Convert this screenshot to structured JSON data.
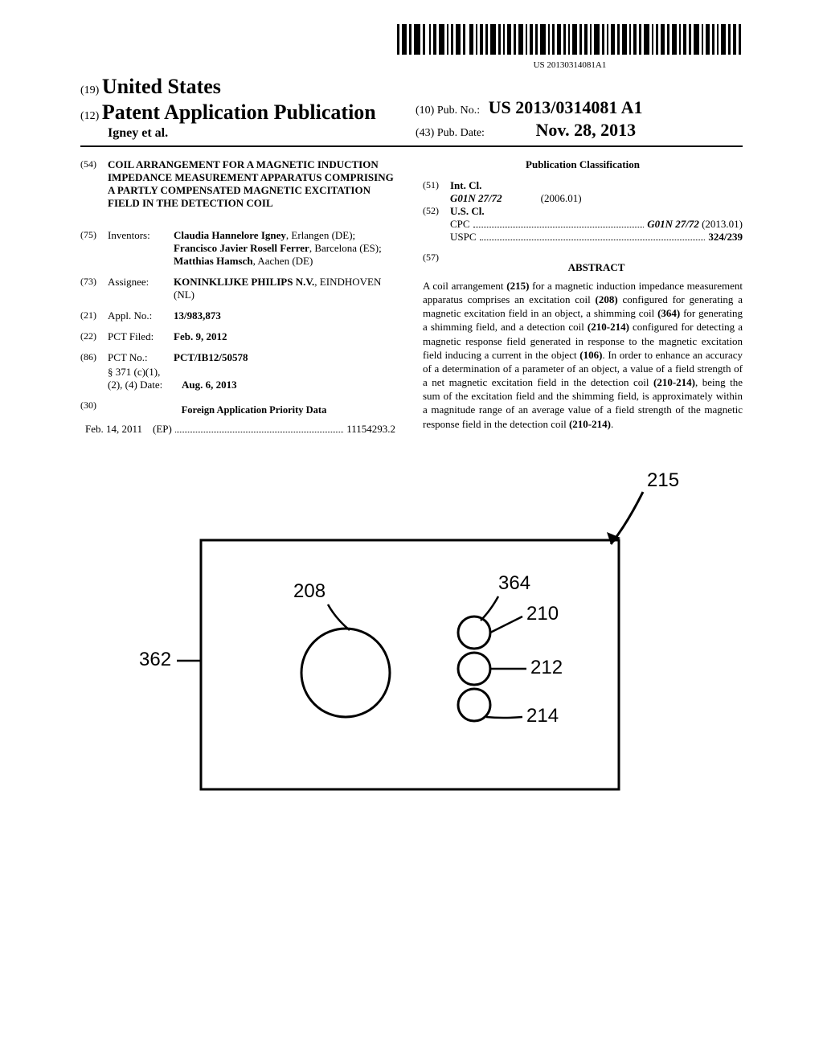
{
  "barcode": {
    "text": "US 20130314081A1"
  },
  "header": {
    "code19": "(19)",
    "country": "United States",
    "code12": "(12)",
    "pubtype": "Patent Application Publication",
    "authors": "Igney et al.",
    "code10": "(10)",
    "pubno_label": "Pub. No.:",
    "pubno": "US 2013/0314081 A1",
    "code43": "(43)",
    "pubdate_label": "Pub. Date:",
    "pubdate": "Nov. 28, 2013"
  },
  "left": {
    "code54": "(54)",
    "title": "COIL ARRANGEMENT FOR A MAGNETIC INDUCTION IMPEDANCE MEASUREMENT APPARATUS COMPRISING A PARTLY COMPENSATED MAGNETIC EXCITATION FIELD IN THE DETECTION COIL",
    "code75": "(75)",
    "inventors_label": "Inventors:",
    "inventors_html": "Claudia Hannelore Igney|, Erlangen (DE); |Francisco Javier Rosell Ferrer|, Barcelona (ES); |Matthias Hamsch|, Aachen (DE)",
    "code73": "(73)",
    "assignee_label": "Assignee:",
    "assignee_name": "KONINKLIJKE PHILIPS N.V.",
    "assignee_loc": "EINDHOVEN (NL)",
    "code21": "(21)",
    "applno_label": "Appl. No.:",
    "applno": "13/983,873",
    "code22": "(22)",
    "pctfiled_label": "PCT Filed:",
    "pctfiled": "Feb. 9, 2012",
    "code86": "(86)",
    "pctno_label": "PCT No.:",
    "pctno": "PCT/IB12/50578",
    "s371_label": "§ 371 (c)(1),",
    "s371_date_label": "(2), (4) Date:",
    "s371_date": "Aug. 6, 2013",
    "code30": "(30)",
    "fapd_header": "Foreign Application Priority Data",
    "priority_date": "Feb. 14, 2011",
    "priority_cc": "(EP)",
    "priority_num": "11154293.2"
  },
  "right": {
    "pub_class_header": "Publication Classification",
    "code51": "(51)",
    "intcl_label": "Int. Cl.",
    "intcl_code": "G01N 27/72",
    "intcl_year": "(2006.01)",
    "code52": "(52)",
    "uscl_label": "U.S. Cl.",
    "cpc_label": "CPC",
    "cpc_value": "G01N 27/72",
    "cpc_year": "(2013.01)",
    "uspc_label": "USPC",
    "uspc_value": "324/239",
    "code57": "(57)",
    "abstract_header": "ABSTRACT",
    "abstract": "A coil arrangement (215) for a magnetic induction impedance measurement apparatus comprises an excitation coil (208) configured for generating a magnetic excitation field in an object, a shimming coil (364) for generating a shimming field, and a detection coil (210-214) configured for detecting a magnetic response field generated in response to the magnetic excitation field inducing a current in the object (106). In order to enhance an accuracy of a determination of a parameter of an object, a value of a field strength of a net magnetic excitation field in the detection coil (210-214), being the sum of the excitation field and the shimming field, is approximately within a magnitude range of an average value of a field strength of the magnetic response field in the detection coil (210-214)."
  },
  "figure": {
    "labels": {
      "c215": "215",
      "c208": "208",
      "c362": "362",
      "c364": "364",
      "c210": "210",
      "c212": "212",
      "c214": "214"
    },
    "box": {
      "stroke": "#000000",
      "stroke_width": 3
    },
    "callout_fontsize": 24
  }
}
